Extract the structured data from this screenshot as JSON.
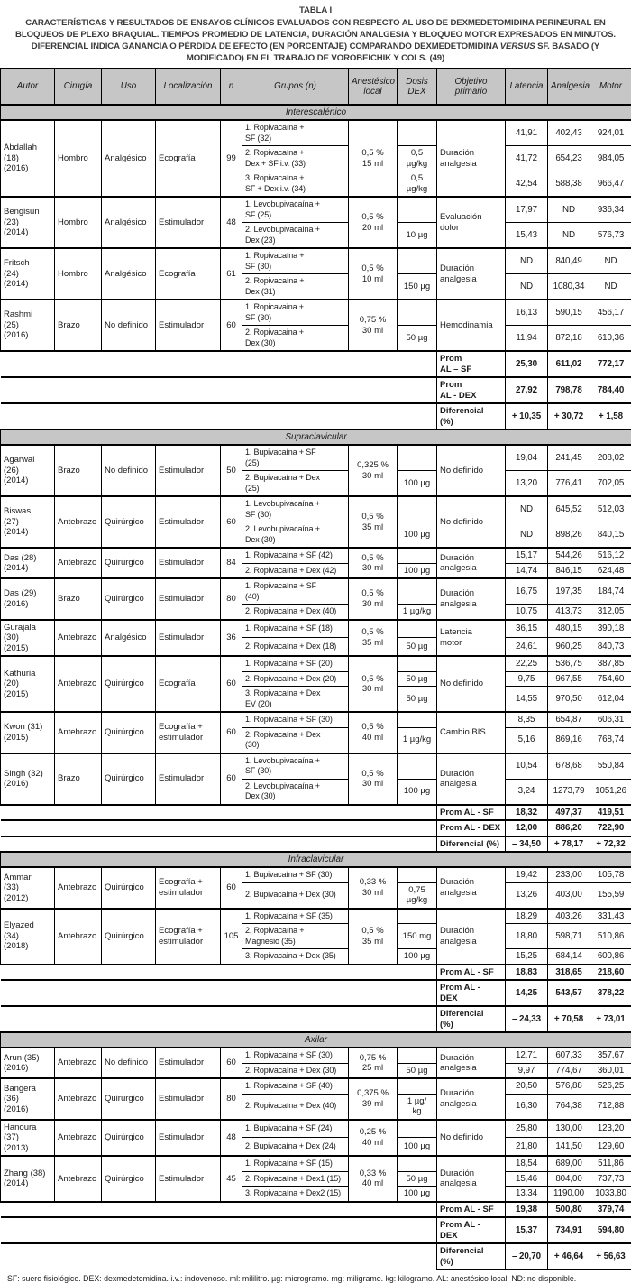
{
  "title": "TABLA I",
  "caption_part1": "CARACTERÍSTICAS Y RESULTADOS DE ENSAYOS CLÍNICOS EVALUADOS CON RESPECTO AL USO DE DEXMEDETOMIDINA PERINEURAL EN BLOQUEOS DE PLEXO BRAQUIAL. TIEMPOS PROMEDIO DE LATENCIA, DURACIÓN ANALGESIA Y BLOQUEO MOTOR EXPRESADOS EN MINUTOS. DIFERENCIAL INDICA GANANCIA O PÉRDIDA DE EFECTO (EN PORCENTAJE) COMPARANDO DEXMEDETOMIDINA ",
  "caption_versus": "VERSUS",
  "caption_part2": " SF. BASADO (Y MODIFICADO) EN EL TRABAJO DE VOROBEICHIK Y COLS. (49)",
  "footnote": "SF: suero fisiológico. DEX: dexmedetomidina. i.v.: indovenoso. ml: mililitro. µg: microgramo. mg: miligramo. kg: kilogramo. AL: anestésico local. ND: no disponible.",
  "colors": {
    "header_bg": "#c6c6c6",
    "border": "#000000"
  },
  "table": {
    "columns": [
      "Autor",
      "Cirugía",
      "Uso",
      "Localización",
      "n",
      "Grupos (n)",
      "Anestésico\nlocal",
      "Dosis\nDEX",
      "Objetivo\nprimario",
      "Latencia",
      "Analgesia",
      "Motor"
    ],
    "sections": [
      {
        "name": "Interescalénico",
        "studies": [
          {
            "autor": "Abdallah\n(18)\n(2016)",
            "cirugia": "Hombro",
            "uso": "Analgésico",
            "loc": "Ecografía",
            "n": "99",
            "al": "0,5 %\n15 ml",
            "objetivo": "Duración\nanalgesia",
            "rows": [
              [
                "1. Ropivacaína +\nSF (32)",
                "",
                "41,91",
                "402,43",
                "924,01"
              ],
              [
                "2. Ropivacaína +\nDex + SF i.v. (33)",
                "0,5\nµg/kg",
                "41,72",
                "654,23",
                "984,05"
              ],
              [
                "3. Ropivacaína +\nSF + Dex i.v. (34)",
                "0,5\nµg/kg",
                "42,54",
                "588,38",
                "966,47"
              ]
            ]
          },
          {
            "autor": "Bengisun\n(23)\n(2014)",
            "cirugia": "Hombro",
            "uso": "Analgésico",
            "loc": "Estimulador",
            "n": "48",
            "al": "0,5 %\n20 ml",
            "objetivo": "Evaluación\ndolor",
            "rows": [
              [
                "1. Levobupivacaína +\nSF (25)",
                "",
                "17,97",
                "ND",
                "936,34"
              ],
              [
                "2. Levobupivacaína +\nDex (23)",
                "10 µg",
                "15,43",
                "ND",
                "576,73"
              ]
            ]
          },
          {
            "autor": "Fritsch\n(24)\n(2014)",
            "cirugia": "Hombro",
            "uso": "Analgésico",
            "loc": "Ecografía",
            "n": "61",
            "al": "0,5 %\n10 ml",
            "objetivo": "Duración\nanalgesia",
            "rows": [
              [
                "1. Ropivacaína +\nSF (30)",
                "",
                "ND",
                "840,49",
                "ND"
              ],
              [
                "2. Ropivacaína +\nDex (31)",
                "150 µg",
                "ND",
                "1080,34",
                "ND"
              ]
            ]
          },
          {
            "autor": "Rashmi\n(25)\n(2016)",
            "cirugia": "Brazo",
            "uso": "No definido",
            "loc": "Estimulador",
            "n": "60",
            "al": "0,75 %\n30 ml",
            "objetivo": "Hemodinamia",
            "rows": [
              [
                "1. Ropicavaina +\nSF (30)",
                "",
                "16,13",
                "590,15",
                "456,17"
              ],
              [
                "2. Ropivacaina +\nDex (30)",
                "50 µg",
                "11,94",
                "872,18",
                "610,36"
              ]
            ]
          }
        ],
        "summary": [
          {
            "label": "Prom\nAL – SF",
            "values": [
              "25,30",
              "611,02",
              "772,17"
            ]
          },
          {
            "label": "Prom\nAL - DEX",
            "values": [
              "27,92",
              "798,78",
              "784,40"
            ]
          },
          {
            "label": "Diferencial\n(%)",
            "values": [
              "+ 10,35",
              "+ 30,72",
              "+ 1,58"
            ]
          }
        ]
      },
      {
        "name": "Supraclavicular",
        "studies": [
          {
            "autor": "Agarwal\n(26)\n(2014)",
            "cirugia": "Brazo",
            "uso": "No definido",
            "loc": "Estimulador",
            "n": "50",
            "al": "0,325 %\n30 ml",
            "objetivo": "No definido",
            "rows": [
              [
                "1. Bupivacaína + SF\n(25)",
                "",
                "19,04",
                "241,45",
                "208,02"
              ],
              [
                "2. Bupivacaína + Dex\n(25)",
                "100 µg",
                "13,20",
                "776,41",
                "702,05"
              ]
            ]
          },
          {
            "autor": "Biswas\n(27)\n(2014)",
            "cirugia": "Antebrazo",
            "uso": "Quirúrgico",
            "loc": "Estimulador",
            "n": "60",
            "al": "0,5 %\n35 ml",
            "objetivo": "No definido",
            "rows": [
              [
                "1. Levobupivacaína +\nSF (30)",
                "",
                "ND",
                "645,52",
                "512,03"
              ],
              [
                "2. Levobupivacaína +\nDex (30)",
                "100 µg",
                "ND",
                "898,26",
                "840,15"
              ]
            ]
          },
          {
            "autor": "Das (28)\n(2014)",
            "cirugia": "Antebrazo",
            "uso": "Quirúrgico",
            "loc": "Estimulador",
            "n": "84",
            "al": "0,5 %\n30 ml",
            "objetivo": "Duración\nanalgesia",
            "rows": [
              [
                "1. Ropivacaína + SF (42)",
                "",
                "15,17",
                "544,26",
                "516,12"
              ],
              [
                "2. Ropivacaína + Dex (42)",
                "100 µg",
                "14,74",
                "846,15",
                "624,48"
              ]
            ]
          },
          {
            "autor": "Das (29)\n(2016)",
            "cirugia": "Brazo",
            "uso": "Quirúrgico",
            "loc": "Estimulador",
            "n": "80",
            "al": "0,5 %\n30 ml",
            "objetivo": "Duración\nanalgesia",
            "rows": [
              [
                "1. Ropivacaína + SF\n(40)",
                "",
                "16,75",
                "197,35",
                "184,74"
              ],
              [
                "2. Ropivacaína + Dex (40)",
                "1 µg/kg",
                "10,75",
                "413,73",
                "312,05"
              ]
            ]
          },
          {
            "autor": "Gurajala\n(30)\n(2015)",
            "cirugia": "Antebrazo",
            "uso": "Analgésico",
            "loc": "Estimulador",
            "n": "36",
            "al": "0,5 %\n35 ml",
            "objetivo": "Latencia\nmotor",
            "rows": [
              [
                "1. Ropivacaína + SF (18)",
                "",
                "36,15",
                "480,15",
                "390,18"
              ],
              [
                "2. Ropivacaína + Dex (18)",
                "50 µg",
                "24,61",
                "960,25",
                "840,73"
              ]
            ]
          },
          {
            "autor": "Kathuria\n(20)\n(2015)",
            "cirugia": "Antebrazo",
            "uso": "Quirúrgico",
            "loc": "Ecografía",
            "n": "60",
            "al": "0,5 %\n30 ml",
            "objetivo": "No definido",
            "rows": [
              [
                "1. Ropivacaína + SF (20)",
                "",
                "22,25",
                "536,75",
                "387,85"
              ],
              [
                "2. Ropivacaína + Dex (20)",
                "50 µg",
                "9,75",
                "967,55",
                "754,60"
              ],
              [
                "3. Ropivacaína + Dex\nEV (20)",
                "50 µg",
                "14,55",
                "970,50",
                "612,04"
              ]
            ]
          },
          {
            "autor": "Kwon (31)\n(2015)",
            "cirugia": "Antebrazo",
            "uso": "Quirúrgico",
            "loc": "Ecografía +\nestimulador",
            "n": "60",
            "al": "0,5 %\n40 ml",
            "objetivo": "Cambio BIS",
            "rows": [
              [
                "1. Ropivacaína + SF (30)",
                "",
                "8,35",
                "654,87",
                "606,31"
              ],
              [
                "2. Ropivacaína + Dex\n(30)",
                "1 µg/kg",
                "5,16",
                "869,16",
                "768,74"
              ]
            ]
          },
          {
            "autor": "Singh (32)\n(2016)",
            "cirugia": "Brazo",
            "uso": "Quirúrgico",
            "loc": "Estimulador",
            "n": "60",
            "al": "0,5 %\n30 ml",
            "objetivo": "Duración\nanalgesia",
            "rows": [
              [
                "1. Levobupivacaína +\nSF (30)",
                "",
                "10,54",
                "678,68",
                "550,84"
              ],
              [
                "2. Levobupivacaína +\nDex (30)",
                "100 µg",
                "3,24",
                "1273,79",
                "1051,26"
              ]
            ]
          }
        ],
        "summary": [
          {
            "label": "Prom AL - SF",
            "values": [
              "18,32",
              "497,37",
              "419,51"
            ]
          },
          {
            "label": "Prom AL - DEX",
            "values": [
              "12,00",
              "886,20",
              "722,90"
            ]
          },
          {
            "label": "Diferencial (%)",
            "values": [
              "– 34,50",
              "+ 78,17",
              "+ 72,32"
            ]
          }
        ]
      },
      {
        "name": "Infraclavicular",
        "studies": [
          {
            "autor": "Ammar\n(33)\n(2012)",
            "cirugia": "Antebrazo",
            "uso": "Quirúrgico",
            "loc": "Ecografía +\nestimulador",
            "n": "60",
            "al": "0,33 %\n30 ml",
            "objetivo": "Duración\nanalgesia",
            "rows": [
              [
                "1, Bupivacaína + SF (30)",
                "",
                "19,42",
                "233,00",
                "105,78"
              ],
              [
                "2, Bupivacaína + Dex (30)",
                "0,75\nµg/kg",
                "13,26",
                "403,00",
                "155,59"
              ]
            ]
          },
          {
            "autor": "Elyazed\n(34)\n(2018)",
            "cirugia": "Antebrazo",
            "uso": "Quirúrgico",
            "loc": "Ecografía +\nestimulador",
            "n": "105",
            "al": "0,5 %\n35 ml",
            "objetivo": "Duración\nanalgesia",
            "rows": [
              [
                "1, Ropivacaína + SF (35)",
                "",
                "18,29",
                "403,26",
                "331,43"
              ],
              [
                "2, Ropivacaína +\nMagnesio (35)",
                "150 mg",
                "18,80",
                "598,71",
                "510,86"
              ],
              [
                "3, Ropivacaina + Dex (35)",
                "100 µg",
                "15,25",
                "684,14",
                "600,86"
              ]
            ]
          }
        ],
        "summary": [
          {
            "label": "Prom AL - SF",
            "values": [
              "18,83",
              "318,65",
              "218,60"
            ]
          },
          {
            "label": "Prom AL -\nDEX",
            "values": [
              "14,25",
              "543,57",
              "378,22"
            ]
          },
          {
            "label": "Diferencial\n(%)",
            "values": [
              "– 24,33",
              "+ 70,58",
              "+ 73,01"
            ]
          }
        ]
      },
      {
        "name": "Axilar",
        "studies": [
          {
            "autor": "Arun (35)\n(2016)",
            "cirugia": "Antebrazo",
            "uso": "No definido",
            "loc": "Estimulador",
            "n": "60",
            "al": "0,75 %\n25 ml",
            "objetivo": "Duración\nanalgesia",
            "rows": [
              [
                "1. Ropivacaína + SF (30)",
                "",
                "12,71",
                "607,33",
                "357,67"
              ],
              [
                "2. Ropivacaína + Dex (30)",
                "50 µg",
                "9,97",
                "774,67",
                "360,01"
              ]
            ]
          },
          {
            "autor": "Bangera\n(36)\n(2016)",
            "cirugia": "Antebrazo",
            "uso": "Quirúrgico",
            "loc": "Estimulador",
            "n": "80",
            "al": "0,375 %\n39 ml",
            "objetivo": "Duración\nanalgesia",
            "rows": [
              [
                "1. Ropivacaína + SF (40)",
                "",
                "20,50",
                "576,88",
                "526,25"
              ],
              [
                "2. Ropivacaína + Dex (40)",
                "1 µg/\nkg",
                "16,30",
                "764,38",
                "712,88"
              ]
            ]
          },
          {
            "autor": "Hanoura\n(37)\n(2013)",
            "cirugia": "Antebrazo",
            "uso": "Quirúrgico",
            "loc": "Estimulador",
            "n": "48",
            "al": "0,25 %\n40 ml",
            "objetivo": "No definido",
            "rows": [
              [
                "1. Bupivacaína + SF (24)",
                "",
                "25,80",
                "130,00",
                "123,20"
              ],
              [
                "2. Bupivacaína + Dex (24)",
                "100 µg",
                "21,80",
                "141,50",
                "129,60"
              ]
            ]
          },
          {
            "autor": "Zhang (38)\n(2014)",
            "cirugia": "Antebrazo",
            "uso": "Quirúrgico",
            "loc": "Estimulador",
            "n": "45",
            "al": "0,33 %\n40 ml",
            "objetivo": "Duración\nanalgesia",
            "rows": [
              [
                "1. Ropivacaína + SF (15)",
                "",
                "18,54",
                "689,00",
                "511,86"
              ],
              [
                "2. Ropivacaína + Dex1 (15)",
                "50 µg",
                "15,46",
                "804,00",
                "737,73"
              ],
              [
                "3. Ropivacaína + Dex2 (15)",
                "100 µg",
                "13,34",
                "1190,00",
                "1033,80"
              ]
            ]
          }
        ],
        "summary": [
          {
            "label": "Prom AL - SF",
            "values": [
              "19,38",
              "500,80",
              "379,74"
            ]
          },
          {
            "label": "Prom AL -\nDEX",
            "values": [
              "15,37",
              "734,91",
              "594,80"
            ]
          },
          {
            "label": "Diferencial\n(%)",
            "values": [
              "– 20,70",
              "+ 46,64",
              "+ 56,63"
            ]
          }
        ]
      }
    ]
  }
}
